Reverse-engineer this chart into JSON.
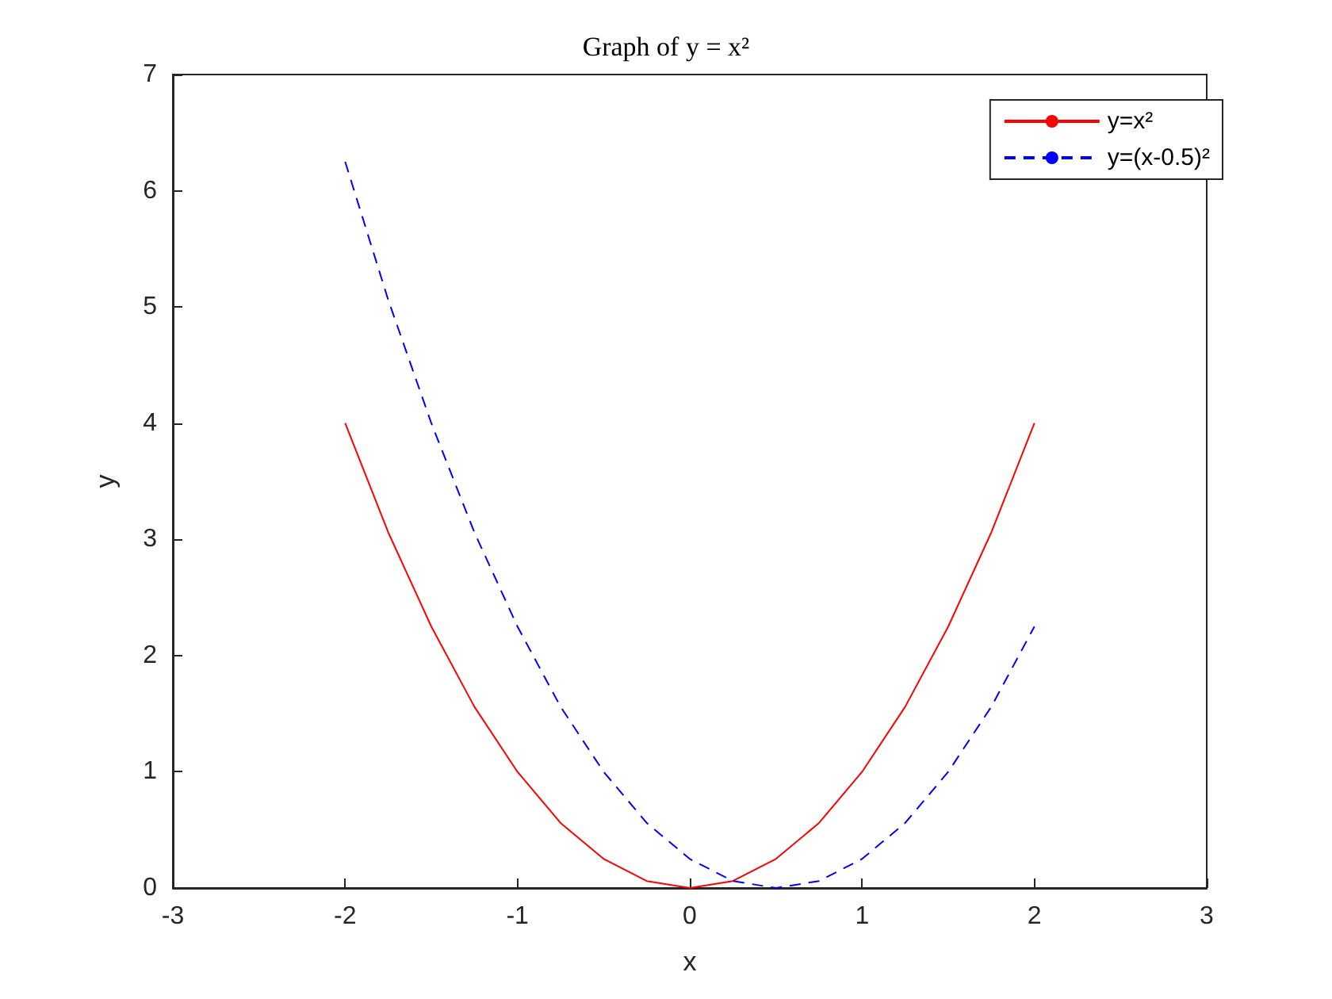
{
  "chart_data": {
    "type": "line",
    "title": "Graph of y = x²",
    "xlabel": "x",
    "ylabel": "y",
    "x": [
      -2,
      -1.75,
      -1.5,
      -1.25,
      -1,
      -0.75,
      -0.5,
      -0.25,
      0,
      0.25,
      0.5,
      0.75,
      1,
      1.25,
      1.5,
      1.75,
      2
    ],
    "series": [
      {
        "name": "y=x²",
        "color": "#ff0000",
        "line_style": "solid",
        "values": [
          4,
          3.06,
          2.25,
          1.56,
          1,
          0.56,
          0.25,
          0.06,
          0,
          0.06,
          0.25,
          0.56,
          1,
          1.56,
          2.25,
          3.06,
          4
        ]
      },
      {
        "name": "y=(x-0.5)²",
        "color": "#0000ff",
        "line_style": "dashed",
        "values": [
          6.25,
          5.06,
          4,
          3.06,
          2.25,
          1.56,
          1,
          0.56,
          0.25,
          0.06,
          0,
          0.06,
          0.25,
          0.56,
          1,
          1.56,
          2.25
        ]
      }
    ],
    "xlim": [
      -3,
      3
    ],
    "xticks": [
      -3,
      -2,
      -1,
      0,
      1,
      2,
      3
    ],
    "ylim": [
      0,
      7
    ],
    "yticks": [
      0,
      1,
      2,
      3,
      4,
      5,
      6,
      7
    ],
    "grid": false,
    "legend": "top right",
    "marker": "none"
  }
}
